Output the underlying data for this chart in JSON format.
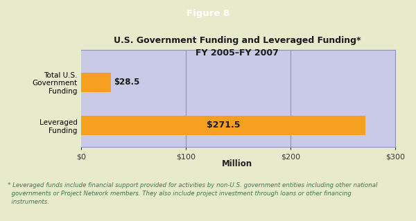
{
  "title_line1": "U.S. Government Funding and Leveraged Funding*",
  "title_line2": "FY 2005–FY 2007",
  "figure_label": "Figure 8",
  "categories": [
    "Total U.S.\nGovernment\nFunding",
    "Leveraged\nFunding"
  ],
  "values": [
    28.5,
    271.5
  ],
  "bar_colors": [
    "#F5A020",
    "#F5A020"
  ],
  "bar_background_color": "#C9CAE5",
  "xlabel": "Million",
  "xlim": [
    0,
    300
  ],
  "xticks": [
    0,
    100,
    200,
    300
  ],
  "xticklabels": [
    "$0",
    "$100",
    "$200",
    "$300"
  ],
  "bar_labels": [
    "$28.5",
    "$271.5"
  ],
  "header_bg": "#2E9B62",
  "header_text": "Figure 8",
  "header_text_color": "#FFFFFF",
  "outer_bg": "#E8EACC",
  "footnote_color": "#3A7A55",
  "footnote": "* Leveraged funds include financial support provided for activities by non-U.S. government entities including other national\n  governments or Project Network members. They also include project investment through loans or other financing\n  instruments.",
  "title_color": "#1A1A1A",
  "axis_border_color": "#9090B8",
  "grid_color": "#9090B8"
}
